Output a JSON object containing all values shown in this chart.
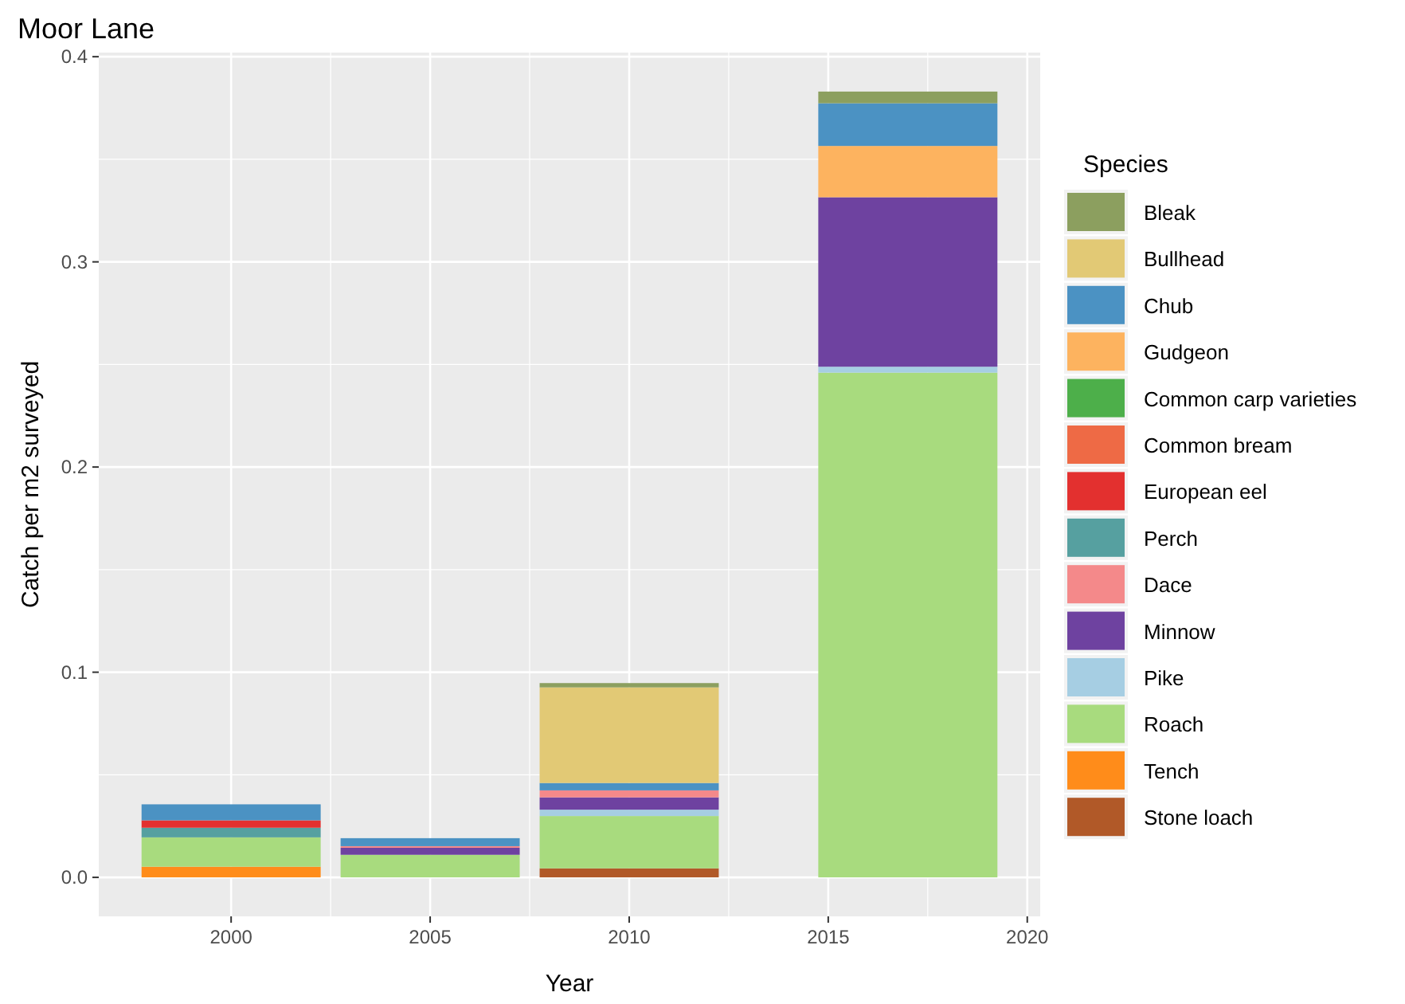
{
  "chart_data": {
    "type": "bar",
    "title": "Moor Lane",
    "xlabel": "Year",
    "ylabel": "Catch per m2 surveyed",
    "legend_title": "Species",
    "x": [
      2000,
      2005,
      2010,
      2017
    ],
    "stacked": true,
    "series": [
      {
        "name": "Stone loach",
        "color": "#b15928",
        "values": [
          0,
          0,
          0.0044,
          0
        ]
      },
      {
        "name": "Tench",
        "color": "#ff8c1a",
        "values": [
          0.0052,
          0,
          0,
          0
        ]
      },
      {
        "name": "Roach",
        "color": "#a8db7e",
        "values": [
          0.0143,
          0.011,
          0.0255,
          0.246
        ]
      },
      {
        "name": "Pike",
        "color": "#a6cee3",
        "values": [
          null,
          null,
          0.0031,
          0.0029
        ]
      },
      {
        "name": "Minnow",
        "color": "#6e42a0",
        "values": [
          0,
          0.0034,
          0.006,
          0.0826
        ]
      },
      {
        "name": "Dace",
        "color": "#f4898a",
        "values": [
          0,
          0.0008,
          0.0034,
          0
        ]
      },
      {
        "name": "Perch",
        "color": "#56a0a0",
        "values": [
          0.0047,
          0,
          0,
          0
        ]
      },
      {
        "name": "European eel",
        "color": "#e3302f",
        "values": [
          0.0036,
          0,
          0,
          0
        ]
      },
      {
        "name": "Common bream",
        "color": "#ee6a45",
        "values": [
          0,
          0,
          0,
          0
        ]
      },
      {
        "name": "Common carp varieties",
        "color": "#4daf4a",
        "values": [
          0,
          0,
          0,
          0
        ]
      },
      {
        "name": "Gudgeon",
        "color": "#fdb35f",
        "values": [
          0,
          0,
          0,
          0.025
        ]
      },
      {
        "name": "Chub",
        "color": "#4b92c3",
        "values": [
          0.0078,
          0.0039,
          0.0036,
          0.0208
        ]
      },
      {
        "name": "Bullhead",
        "color": "#e2c975",
        "values": [
          0,
          0,
          0.0466,
          0
        ]
      },
      {
        "name": "Bleak",
        "color": "#8c9f5f",
        "values": [
          0,
          0,
          0.0021,
          0.0057
        ]
      }
    ],
    "xlim": [
      1996.675,
      2020.325
    ],
    "xticks": [
      2000,
      2005,
      2010,
      2015,
      2020
    ],
    "ylim": [
      -0.019,
      0.402
    ],
    "yticks": [
      {
        "value": 0,
        "label": "0.0"
      },
      0.1,
      0.2,
      0.3,
      0.4
    ],
    "grid": true,
    "legend": "right"
  }
}
